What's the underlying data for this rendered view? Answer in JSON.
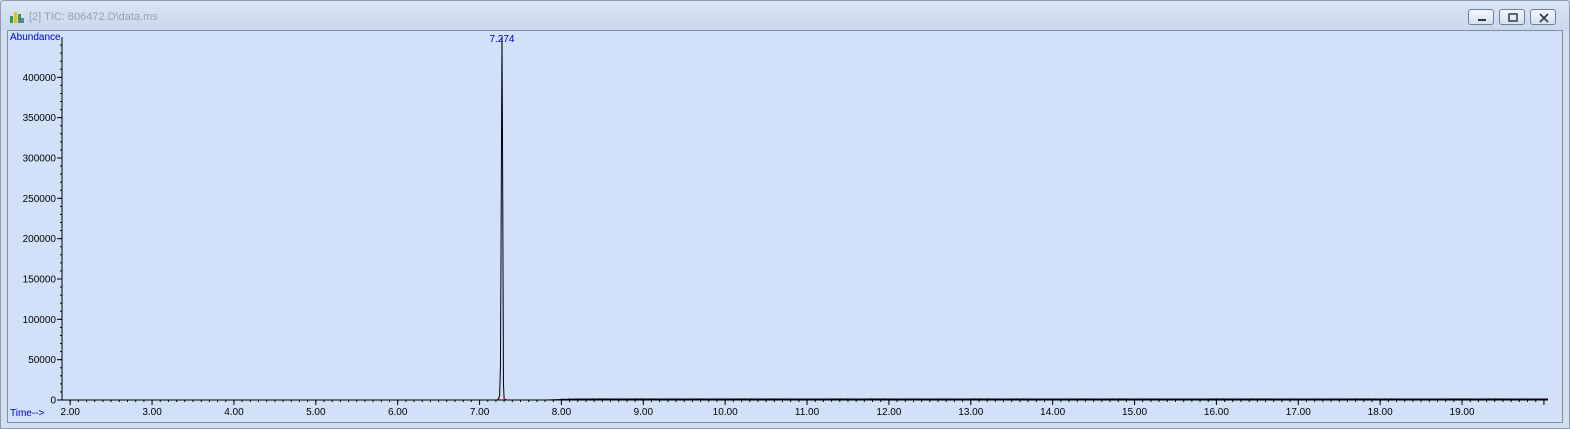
{
  "window": {
    "title": "[2] TIC: 806472.D\\data.ms"
  },
  "colors": {
    "plot_background": "#d0e1f9",
    "trace": "#000000",
    "label_blue": "#0000c8",
    "peak_marker": "#ff0000"
  },
  "chart_data": {
    "type": "line",
    "ylabel": "Abundance",
    "xlabel": "Time-->",
    "xlim": [
      1.9,
      20.05
    ],
    "ylim": [
      0,
      450000
    ],
    "x_ticks": [
      2,
      3,
      4,
      5,
      6,
      7,
      8,
      9,
      10,
      11,
      12,
      13,
      14,
      15,
      16,
      17,
      18,
      19
    ],
    "x_tick_labels": [
      "2.00",
      "3.00",
      "4.00",
      "5.00",
      "6.00",
      "7.00",
      "8.00",
      "9.00",
      "10.00",
      "11.00",
      "12.00",
      "13.00",
      "14.00",
      "15.00",
      "16.00",
      "17.00",
      "18.00",
      "19.00"
    ],
    "y_ticks": [
      0,
      50000,
      100000,
      150000,
      200000,
      250000,
      300000,
      350000,
      400000
    ],
    "y_tick_labels": [
      "0",
      "50000",
      "100000",
      "150000",
      "200000",
      "250000",
      "300000",
      "350000",
      "400000"
    ],
    "peak_label": "7.274",
    "peak_x": 7.274,
    "series": [
      {
        "x": [
          1.9,
          7.0,
          7.22,
          7.245,
          7.255,
          7.262,
          7.268,
          7.274,
          7.28,
          7.286,
          7.292,
          7.3,
          7.33,
          7.5,
          7.8,
          8.2,
          20.05
        ],
        "y": [
          0,
          0,
          0,
          5000,
          40000,
          180000,
          325000,
          450000,
          330000,
          180000,
          20000,
          1500,
          0,
          0,
          0,
          1200,
          1200
        ]
      }
    ]
  }
}
